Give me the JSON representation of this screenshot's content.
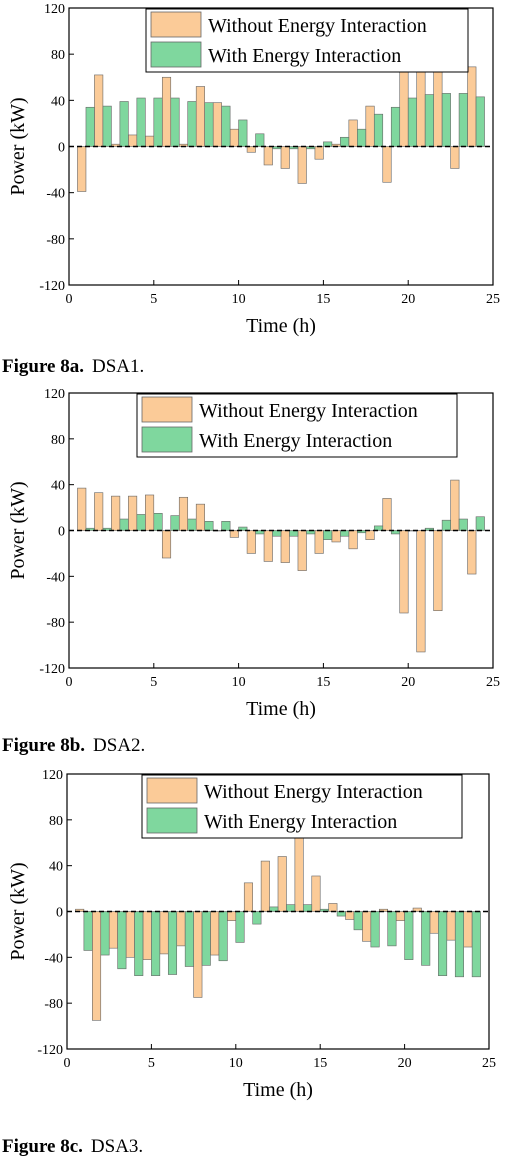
{
  "colors": {
    "without": "#fbcb98",
    "with": "#7fd79e",
    "bar_stroke": "#666666",
    "axis": "#000000"
  },
  "legend": {
    "without_label": "Without Energy Interaction",
    "with_label": "With Energy Interaction"
  },
  "figures": [
    {
      "number": "Figure 8a.",
      "name": "DSA1."
    },
    {
      "number": "Figure 8b.",
      "name": "DSA2."
    },
    {
      "number": "Figure 8c.",
      "name": "DSA3."
    }
  ],
  "chart_data": [
    {
      "type": "bar",
      "title": "DSA1.",
      "xlabel": "Time (h)",
      "ylabel": "Power (kW)",
      "xlim": [
        0,
        25
      ],
      "ylim": [
        -120,
        120
      ],
      "xticks": [
        0,
        5,
        10,
        15,
        20,
        25
      ],
      "yticks": [
        -120,
        -80,
        -40,
        0,
        40,
        80,
        120
      ],
      "legend_position": "top-right",
      "x": [
        1,
        2,
        3,
        4,
        5,
        6,
        7,
        8,
        9,
        10,
        11,
        12,
        13,
        14,
        15,
        16,
        17,
        18,
        19,
        20,
        21,
        22,
        23,
        24
      ],
      "series": [
        {
          "name": "Without Energy Interaction",
          "values": [
            -39,
            62,
            2,
            10,
            9,
            60,
            2,
            52,
            38,
            15,
            -5,
            -16,
            -19,
            -32,
            -11,
            2,
            23,
            35,
            -31,
            76,
            102,
            88,
            -19,
            69
          ]
        },
        {
          "name": "With Energy Interaction",
          "values": [
            34,
            35,
            39,
            42,
            42,
            42,
            39,
            38,
            35,
            23,
            11,
            -2,
            -2,
            -2,
            4,
            8,
            15,
            28,
            34,
            42,
            45,
            46,
            46,
            43
          ]
        }
      ]
    },
    {
      "type": "bar",
      "title": "DSA2.",
      "xlabel": "Time (h)",
      "ylabel": "Power (kW)",
      "xlim": [
        0,
        25
      ],
      "ylim": [
        -120,
        120
      ],
      "xticks": [
        0,
        5,
        10,
        15,
        20,
        25
      ],
      "yticks": [
        -120,
        -80,
        -40,
        0,
        40,
        80,
        120
      ],
      "legend_position": "top-right",
      "x": [
        1,
        2,
        3,
        4,
        5,
        6,
        7,
        8,
        9,
        10,
        11,
        12,
        13,
        14,
        15,
        16,
        17,
        18,
        19,
        20,
        21,
        22,
        23,
        24
      ],
      "series": [
        {
          "name": "Without Energy Interaction",
          "values": [
            37,
            33,
            30,
            30,
            31,
            -24,
            29,
            23,
            0,
            -6,
            -20,
            -27,
            -28,
            -35,
            -20,
            -10,
            -16,
            -8,
            28,
            -72,
            -106,
            -70,
            44,
            -38
          ]
        },
        {
          "name": "With Energy Interaction",
          "values": [
            2,
            2,
            10,
            14,
            15,
            13,
            10,
            8,
            8,
            3,
            -3,
            -5,
            -5,
            -3,
            -8,
            -5,
            -2,
            4,
            -3,
            0,
            2,
            9,
            10,
            12
          ]
        }
      ]
    },
    {
      "type": "bar",
      "title": "DSA3.",
      "xlabel": "Time (h)",
      "ylabel": "Power (kW)",
      "xlim": [
        0,
        25
      ],
      "ylim": [
        -120,
        120
      ],
      "xticks": [
        0,
        5,
        10,
        15,
        20,
        25
      ],
      "yticks": [
        -120,
        -80,
        -40,
        0,
        40,
        80,
        120
      ],
      "legend_position": "top-right",
      "x": [
        1,
        2,
        3,
        4,
        5,
        6,
        7,
        8,
        9,
        10,
        11,
        12,
        13,
        14,
        15,
        16,
        17,
        18,
        19,
        20,
        21,
        22,
        23,
        24
      ],
      "series": [
        {
          "name": "Without Energy Interaction",
          "values": [
            2,
            -95,
            -32,
            -40,
            -42,
            -37,
            -30,
            -75,
            -38,
            -8,
            25,
            44,
            48,
            68,
            31,
            7,
            -7,
            -26,
            2,
            -8,
            3,
            -19,
            -25,
            -31
          ]
        },
        {
          "name": "With Energy Interaction",
          "values": [
            -34,
            -38,
            -50,
            -56,
            -56,
            -55,
            -48,
            -47,
            -43,
            -27,
            -11,
            4,
            6,
            6,
            2,
            -4,
            -16,
            -31,
            -30,
            -42,
            -47,
            -56,
            -57,
            -57
          ]
        }
      ]
    }
  ]
}
